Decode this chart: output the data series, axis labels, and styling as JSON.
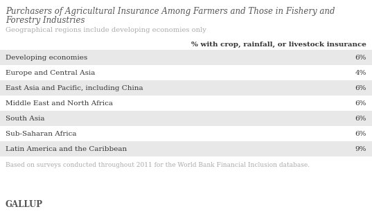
{
  "title_line1": "Purchasers of Agricultural Insurance Among Farmers and Those in Fishery and",
  "title_line2": "Forestry Industries",
  "subtitle": "Geographical regions include developing economies only",
  "column_header": "% with crop, rainfall, or livestock insurance",
  "rows": [
    {
      "region": "Developing economies",
      "value": "6%"
    },
    {
      "region": "Europe and Central Asia",
      "value": "4%"
    },
    {
      "region": "East Asia and Pacific, including China",
      "value": "6%"
    },
    {
      "region": "Middle East and North Africa",
      "value": "6%"
    },
    {
      "region": "South Asia",
      "value": "6%"
    },
    {
      "region": "Sub-Saharan Africa",
      "value": "6%"
    },
    {
      "region": "Latin America and the Caribbean",
      "value": "9%"
    }
  ],
  "footer": "Based on surveys conducted throughout 2011 for the World Bank Financial Inclusion database.",
  "brand": "GALLUP",
  "bg_color": "#ffffff",
  "row_shaded_color": "#e8e8e8",
  "row_white_color": "#ffffff",
  "title_color": "#555555",
  "subtitle_color": "#aaaaaa",
  "header_color": "#333333",
  "row_text_color": "#333333",
  "footer_color": "#aaaaaa",
  "brand_color": "#555555",
  "title_fontsize": 8.5,
  "subtitle_fontsize": 7.2,
  "header_fontsize": 7.5,
  "row_fontsize": 7.5,
  "footer_fontsize": 6.5,
  "brand_fontsize": 8.5
}
